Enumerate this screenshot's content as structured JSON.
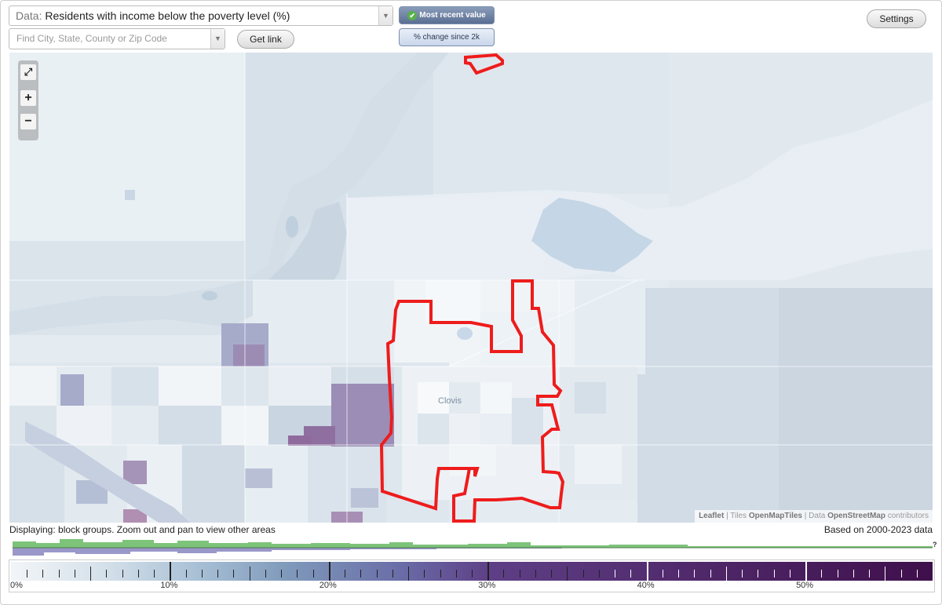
{
  "controls": {
    "data_prefix": "Data:",
    "data_value": "Residents with income below the poverty level (%)",
    "find_placeholder": "Find City, State, County or Zip Code",
    "get_link": "Get link",
    "mode_recent": "Most recent value",
    "mode_change": "% change since 2k",
    "settings": "Settings"
  },
  "map": {
    "zoom_fit": "⤢",
    "zoom_in": "+",
    "zoom_out": "−",
    "place_label": "Clovis",
    "attribution": {
      "leaflet": "Leaflet",
      "tiles_prefix": "Tiles",
      "tiles": "OpenMapTiles",
      "data_prefix": "Data",
      "data": "OpenStreetMap",
      "suffix": "contributors"
    },
    "boundary_color": "#ee1c1c"
  },
  "footer": {
    "displaying": "Displaying: block groups. Zoom out and pan to view other areas",
    "based_on": "Based on 2000-2023 data",
    "unknown_mark": "?"
  },
  "legend": {
    "labels": [
      "0%",
      "10%",
      "20%",
      "30%",
      "40%",
      "50%"
    ],
    "values": [
      0,
      10,
      20,
      30,
      40,
      50
    ],
    "max": 58,
    "colors": [
      "#f2f5f8",
      "#a9c1d6",
      "#7f99bb",
      "#6a6ea8",
      "#5e3f86",
      "#3f0f4b"
    ]
  }
}
